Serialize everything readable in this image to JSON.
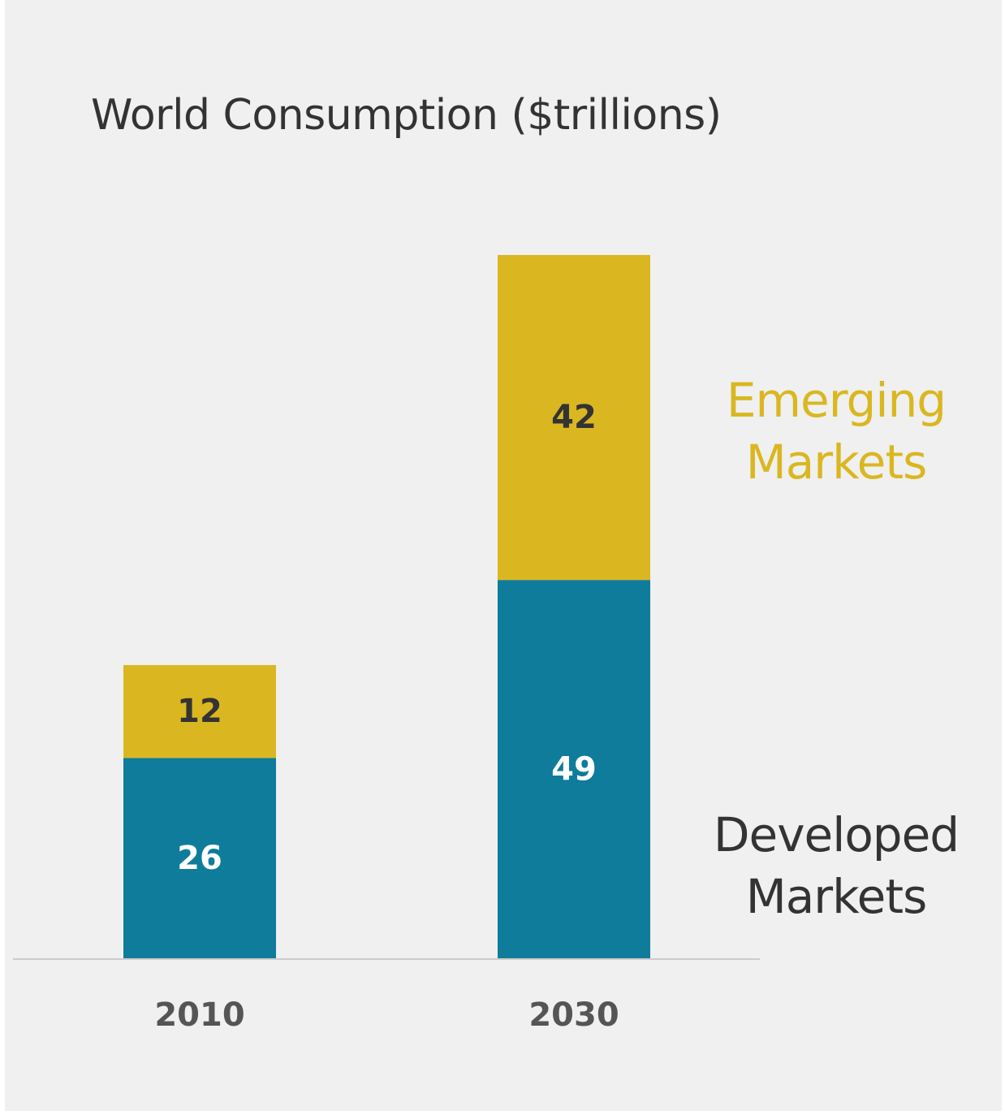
{
  "chart_data": {
    "type": "bar",
    "stacked": true,
    "title": "World Consumption ($trillions)",
    "categories": [
      "2010",
      "2030"
    ],
    "series": [
      {
        "name": "Developed Markets",
        "values": [
          26,
          49
        ],
        "color": "#0e7c9a",
        "label_color": "#ffffff"
      },
      {
        "name": "Emerging Markets",
        "values": [
          12,
          42
        ],
        "color": "#dab720",
        "label_color": "#333333"
      }
    ],
    "legend_colors": {
      "Developed Markets": "#333333",
      "Emerging Markets": "#dab720"
    },
    "legend_placement": "right",
    "grid": false,
    "ylim": [
      0,
      91
    ],
    "xlabel": "",
    "ylabel": ""
  },
  "legend_lines": {
    "emerging": [
      "Emerging",
      "Markets"
    ],
    "developed": [
      "Developed",
      "Markets"
    ]
  }
}
